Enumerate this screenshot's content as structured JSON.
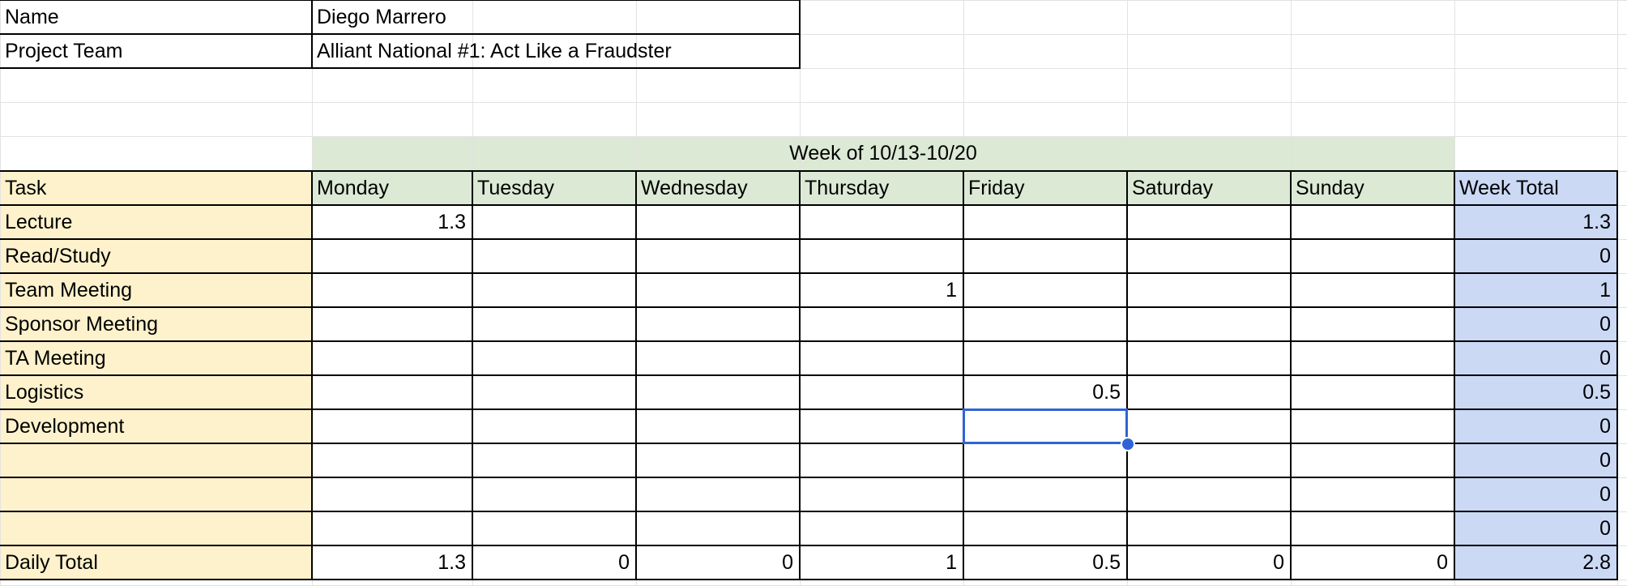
{
  "info": {
    "name_label": "Name",
    "name_value": "Diego Marrero",
    "team_label": "Project Team",
    "team_value": "Alliant National #1: Act Like a Fraudster"
  },
  "table": {
    "week_header": "Week of 10/13-10/20",
    "task_header": "Task",
    "days": [
      "Monday",
      "Tuesday",
      "Wednesday",
      "Thursday",
      "Friday",
      "Saturday",
      "Sunday"
    ],
    "week_total_header": "Week Total",
    "rows": [
      {
        "task": "Lecture",
        "values": [
          "1.3",
          "",
          "",
          "",
          "",
          "",
          ""
        ],
        "total": "1.3"
      },
      {
        "task": "Read/Study",
        "values": [
          "",
          "",
          "",
          "",
          "",
          "",
          ""
        ],
        "total": "0"
      },
      {
        "task": "Team Meeting",
        "values": [
          "",
          "",
          "",
          "1",
          "",
          "",
          ""
        ],
        "total": "1"
      },
      {
        "task": "Sponsor Meeting",
        "values": [
          "",
          "",
          "",
          "",
          "",
          "",
          ""
        ],
        "total": "0"
      },
      {
        "task": "TA Meeting",
        "values": [
          "",
          "",
          "",
          "",
          "",
          "",
          ""
        ],
        "total": "0"
      },
      {
        "task": "Logistics",
        "values": [
          "",
          "",
          "",
          "",
          "0.5",
          "",
          ""
        ],
        "total": "0.5"
      },
      {
        "task": "Development",
        "values": [
          "",
          "",
          "",
          "",
          "",
          "",
          ""
        ],
        "total": "0"
      },
      {
        "task": "",
        "values": [
          "",
          "",
          "",
          "",
          "",
          "",
          ""
        ],
        "total": "0"
      },
      {
        "task": "",
        "values": [
          "",
          "",
          "",
          "",
          "",
          "",
          ""
        ],
        "total": "0"
      },
      {
        "task": "",
        "values": [
          "",
          "",
          "",
          "",
          "",
          "",
          ""
        ],
        "total": "0"
      }
    ],
    "daily_total_label": "Daily Total",
    "daily_totals": [
      "1.3",
      "0",
      "0",
      "1",
      "0.5",
      "0",
      "0"
    ],
    "grand_total": "2.8"
  },
  "selection": {
    "row": 6,
    "col": 4
  },
  "colors": {
    "task_fill": "#fdf2cc",
    "week_fill": "#dbe9d5",
    "total_fill": "#cbd9f5",
    "selection": "#2f64d6",
    "gridline": "#e2e2e2"
  }
}
